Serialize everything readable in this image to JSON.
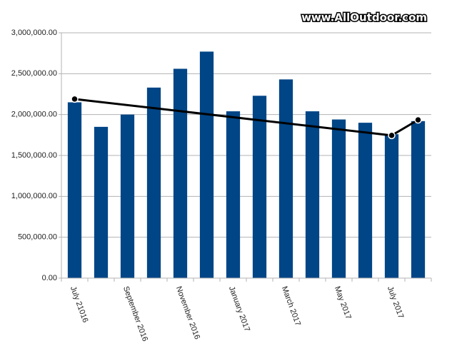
{
  "chart_data": {
    "type": "bar",
    "watermark": "www.AllOutdoor.com",
    "categories": [
      "July 21016",
      null,
      "September 2016",
      null,
      "November 2016",
      null,
      "January 2017",
      null,
      "March 2017",
      null,
      "May 2017",
      null,
      "July 2017",
      null
    ],
    "series": [
      {
        "type": "bar",
        "color": "#004586",
        "values": [
          2150000,
          1850000,
          2000000,
          2330000,
          2560000,
          2770000,
          2040000,
          2230000,
          2430000,
          2040000,
          1940000,
          1900000,
          1760000,
          1920000
        ]
      },
      {
        "type": "line",
        "color": "#000000",
        "span_gaps": true,
        "values": [
          2190000,
          null,
          null,
          null,
          null,
          null,
          null,
          null,
          null,
          null,
          null,
          null,
          1745000,
          1935000
        ]
      }
    ],
    "ylim": [
      0,
      3000000
    ],
    "yticks": [
      {
        "value": 0,
        "label": "0.00"
      },
      {
        "value": 500000,
        "label": "500,000.00"
      },
      {
        "value": 1000000,
        "label": "1,000,000.00"
      },
      {
        "value": 1500000,
        "label": "1,500,000.00"
      },
      {
        "value": 2000000,
        "label": "2,000,000.00"
      },
      {
        "value": 2500000,
        "label": "2,500,000.00"
      },
      {
        "value": 3000000,
        "label": "3,000,000.00"
      }
    ],
    "grid": true
  }
}
